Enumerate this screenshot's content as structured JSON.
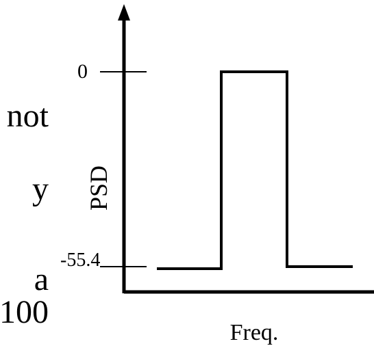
{
  "fragments": [
    "not",
    "y",
    "a",
    "/100"
  ],
  "y_ticks": {
    "top": "0",
    "bottom": "-55.4"
  },
  "axis_labels": {
    "y": "PSD",
    "x": "Freq."
  },
  "chart_data": {
    "type": "line",
    "series": [
      {
        "x": [
          0,
          1,
          1,
          2,
          2,
          3
        ],
        "y": [
          -55.4,
          -55.4,
          0,
          0,
          -55.4,
          -55.4
        ]
      }
    ],
    "xlabel": "Freq.",
    "ylabel": "PSD",
    "yticks": [
      0,
      -55.4
    ],
    "ylim": [
      -55.4,
      0
    ]
  }
}
